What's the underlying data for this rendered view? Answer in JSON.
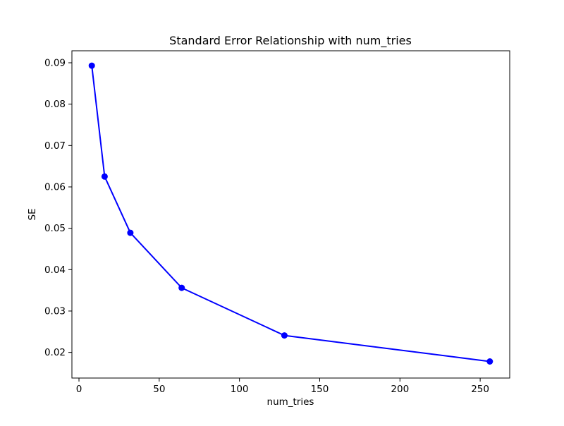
{
  "chart_data": {
    "type": "line",
    "title": "Standard Error Relationship with num_tries",
    "xlabel": "num_tries",
    "ylabel": "SE",
    "x": [
      8,
      16,
      32,
      64,
      128,
      256
    ],
    "y": [
      0.0893,
      0.0625,
      0.0489,
      0.0356,
      0.0241,
      0.0178
    ],
    "xticks": [
      0,
      50,
      100,
      150,
      200,
      250
    ],
    "yticks": [
      0.02,
      0.03,
      0.04,
      0.05,
      0.06,
      0.07,
      0.08,
      0.09
    ],
    "xlim": [
      -4.4,
      268.4
    ],
    "ylim": [
      0.0138,
      0.0929
    ],
    "line_color": "#0000ff",
    "marker": "circle",
    "grid": false,
    "legend_position": "none"
  }
}
